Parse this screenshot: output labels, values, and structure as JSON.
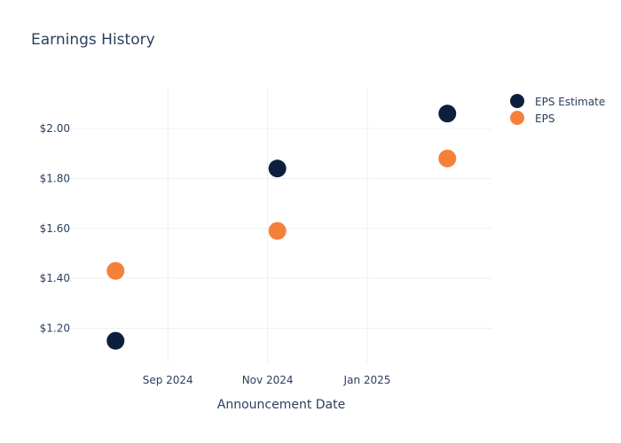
{
  "colors": {
    "estimate": "#0d1f3c",
    "actual": "#f5803a"
  },
  "chart_data": {
    "type": "scatter",
    "title": "Earnings History",
    "xlabel": "Announcement Date",
    "ylabel": "",
    "x_ticks": [
      "Sep 2024",
      "Nov 2024",
      "Jan 2025"
    ],
    "y_ticks": [
      "$1.20",
      "$1.40",
      "$1.60",
      "$1.80",
      "$2.00"
    ],
    "ylim": [
      1.06,
      2.16
    ],
    "grid": true,
    "legend_position": "top-right",
    "x": [
      "2024-07-31",
      "2024-11-07",
      "2025-02-19"
    ],
    "series": [
      {
        "name": "EPS Estimate",
        "values": [
          1.15,
          1.84,
          2.06
        ]
      },
      {
        "name": "EPS",
        "values": [
          1.43,
          1.59,
          1.88
        ]
      }
    ]
  }
}
